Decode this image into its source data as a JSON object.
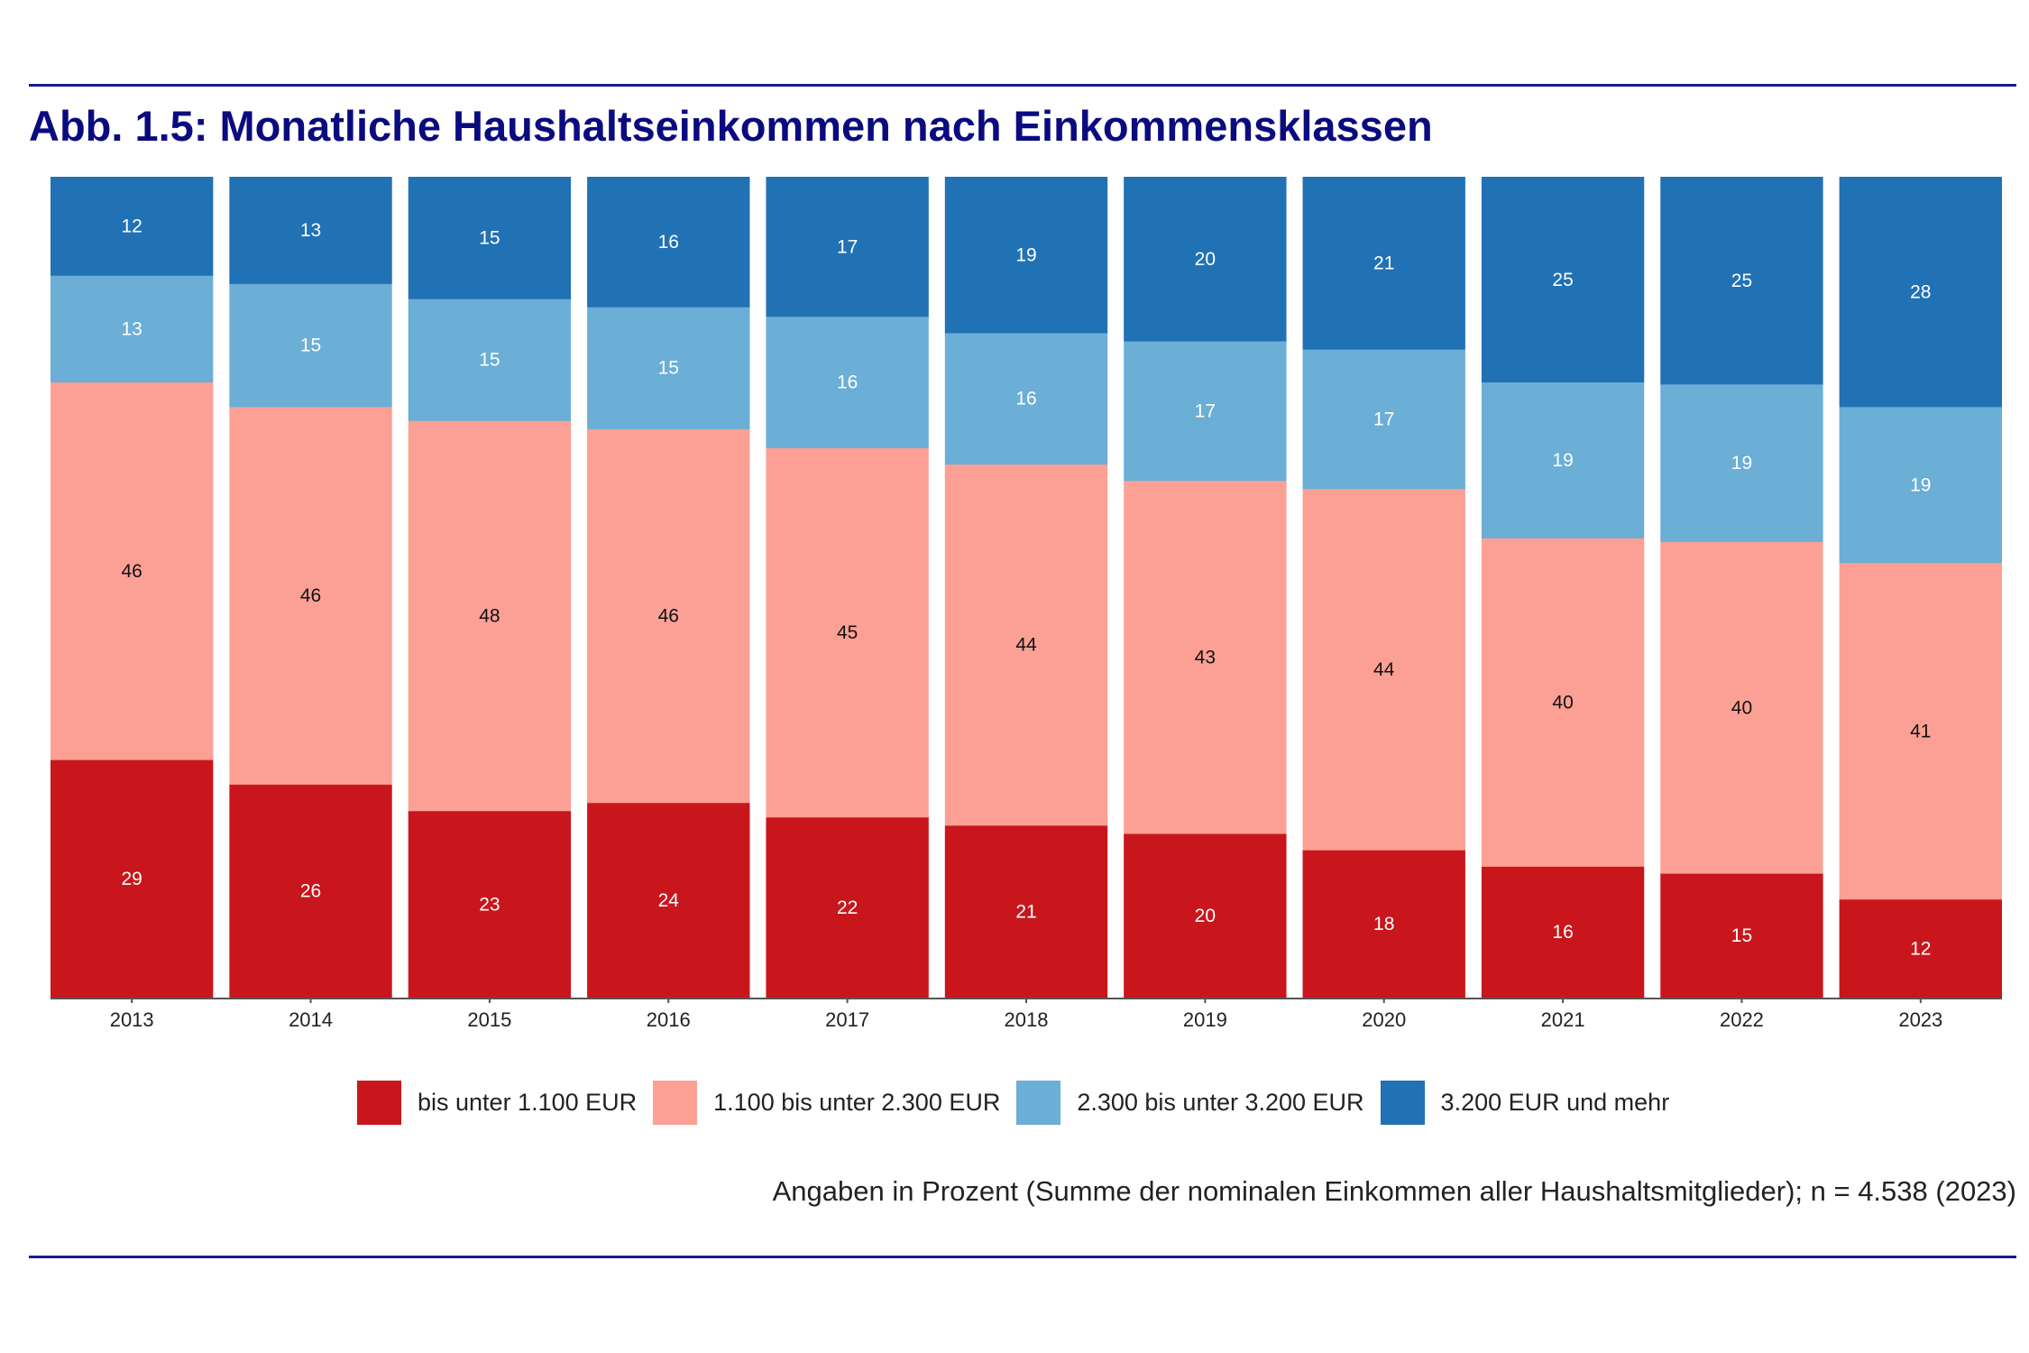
{
  "chart_data": {
    "type": "bar",
    "stacked": true,
    "title": "Abb. 1.5: Monatliche Haushaltseinkommen nach Einkommensklassen",
    "xlabel": "",
    "ylabel": "",
    "categories": [
      "2013",
      "2014",
      "2015",
      "2016",
      "2017",
      "2018",
      "2019",
      "2020",
      "2021",
      "2022",
      "2023"
    ],
    "series": [
      {
        "name": "bis unter 1.100 EUR",
        "color": "#c8161c",
        "label_color": "#ffffff",
        "values": [
          29,
          26,
          23,
          24,
          22,
          21,
          20,
          18,
          16,
          15,
          12
        ]
      },
      {
        "name": "1.100 bis unter 2.300 EUR",
        "color": "#fca095",
        "label_color": "#111111",
        "values": [
          46,
          46,
          48,
          46,
          45,
          44,
          43,
          44,
          40,
          40,
          41
        ]
      },
      {
        "name": "2.300 bis unter 3.200 EUR",
        "color": "#6baed6",
        "label_color": "#ffffff",
        "values": [
          13,
          15,
          15,
          15,
          16,
          16,
          17,
          17,
          19,
          19,
          19
        ]
      },
      {
        "name": "3.200 EUR und mehr",
        "color": "#2171b5",
        "label_color": "#ffffff",
        "values": [
          12,
          13,
          15,
          16,
          17,
          19,
          20,
          21,
          25,
          25,
          28
        ]
      }
    ],
    "ylim": [
      0,
      100
    ],
    "grid": false,
    "legend_position": "bottom",
    "note": "Angaben in Prozent (Summe der nominalen Einkommen aller Haushaltsmitglieder); n = 4.538 (2023)"
  }
}
